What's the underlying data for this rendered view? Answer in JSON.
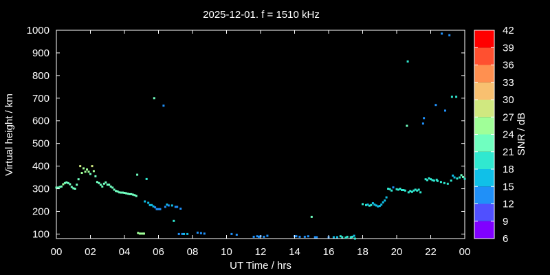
{
  "chart_data": {
    "type": "scatter",
    "title": "2025-12-01. f = 1510 kHz",
    "xlabel": "UT Time / hrs",
    "ylabel": "Virtual height / km",
    "xlim": [
      0,
      24
    ],
    "ylim": [
      80,
      1000
    ],
    "x_ticks": [
      "00",
      "02",
      "04",
      "06",
      "08",
      "10",
      "12",
      "14",
      "16",
      "18",
      "20",
      "22",
      "00"
    ],
    "y_ticks": [
      100,
      200,
      300,
      400,
      500,
      600,
      700,
      800,
      900,
      1000
    ],
    "grid": false,
    "colorbar": {
      "label": "SNR / dB",
      "range": [
        6,
        42
      ],
      "ticks": [
        6,
        9,
        12,
        15,
        18,
        21,
        24,
        27,
        30,
        33,
        36,
        39,
        42
      ],
      "colors": [
        "#8000ff",
        "#5050ff",
        "#2090f8",
        "#10c0e8",
        "#30e8d0",
        "#70ffc0",
        "#a0ff98",
        "#d0e880",
        "#f8c070",
        "#ff9050",
        "#ff5030",
        "#ff0000"
      ]
    },
    "points": [
      [
        0.0,
        305,
        22
      ],
      [
        0.1,
        305,
        22
      ],
      [
        0.2,
        308,
        22
      ],
      [
        0.3,
        310,
        23
      ],
      [
        0.4,
        320,
        24
      ],
      [
        0.5,
        325,
        23
      ],
      [
        0.6,
        328,
        22
      ],
      [
        0.7,
        325,
        22
      ],
      [
        0.8,
        320,
        23
      ],
      [
        0.9,
        308,
        23
      ],
      [
        1.0,
        302,
        22
      ],
      [
        1.1,
        300,
        22
      ],
      [
        1.2,
        318,
        23
      ],
      [
        1.3,
        342,
        23
      ],
      [
        1.4,
        400,
        28
      ],
      [
        1.5,
        370,
        25
      ],
      [
        1.6,
        390,
        26
      ],
      [
        1.7,
        375,
        24
      ],
      [
        1.8,
        385,
        25
      ],
      [
        1.9,
        375,
        24
      ],
      [
        2.0,
        365,
        23
      ],
      [
        2.1,
        400,
        28
      ],
      [
        2.2,
        378,
        25
      ],
      [
        2.3,
        355,
        22
      ],
      [
        2.4,
        330,
        22
      ],
      [
        2.5,
        325,
        22
      ],
      [
        2.6,
        318,
        22
      ],
      [
        2.7,
        310,
        23
      ],
      [
        2.8,
        322,
        22
      ],
      [
        2.9,
        328,
        23
      ],
      [
        3.0,
        318,
        22
      ],
      [
        3.1,
        318,
        22
      ],
      [
        3.2,
        310,
        22
      ],
      [
        3.3,
        305,
        22
      ],
      [
        3.4,
        296,
        22
      ],
      [
        3.5,
        290,
        22
      ],
      [
        3.6,
        288,
        22
      ],
      [
        3.7,
        284,
        22
      ],
      [
        3.8,
        283,
        22
      ],
      [
        3.9,
        283,
        22
      ],
      [
        4.0,
        282,
        22
      ],
      [
        4.1,
        280,
        22
      ],
      [
        4.2,
        278,
        22
      ],
      [
        4.3,
        276,
        22
      ],
      [
        4.4,
        276,
        22
      ],
      [
        4.5,
        274,
        22
      ],
      [
        4.6,
        272,
        22
      ],
      [
        4.7,
        268,
        22
      ],
      [
        4.75,
        362,
        21
      ],
      [
        4.8,
        105,
        24
      ],
      [
        4.9,
        102,
        24
      ],
      [
        5.0,
        102,
        26
      ],
      [
        5.1,
        102,
        26
      ],
      [
        5.15,
        102,
        26
      ],
      [
        5.2,
        244,
        17
      ],
      [
        5.3,
        343,
        18
      ],
      [
        5.4,
        238,
        16
      ],
      [
        5.5,
        228,
        16
      ],
      [
        5.6,
        228,
        15
      ],
      [
        5.7,
        222,
        15
      ],
      [
        5.75,
        700,
        22
      ],
      [
        5.8,
        218,
        14
      ],
      [
        5.9,
        210,
        14
      ],
      [
        6.0,
        210,
        14
      ],
      [
        6.1,
        210,
        14
      ],
      [
        6.3,
        667,
        14
      ],
      [
        6.4,
        220,
        14
      ],
      [
        6.5,
        230,
        15
      ],
      [
        6.6,
        226,
        14
      ],
      [
        6.8,
        226,
        15
      ],
      [
        6.9,
        158,
        18
      ],
      [
        7.0,
        220,
        12
      ],
      [
        7.1,
        220,
        12
      ],
      [
        7.2,
        100,
        13
      ],
      [
        7.3,
        212,
        12
      ],
      [
        7.4,
        100,
        14
      ],
      [
        7.5,
        100,
        15
      ],
      [
        7.7,
        100,
        15
      ],
      [
        8.3,
        106,
        13
      ],
      [
        8.5,
        104,
        13
      ],
      [
        8.7,
        102,
        13
      ],
      [
        10.3,
        100,
        13
      ],
      [
        10.6,
        97,
        13
      ],
      [
        11.6,
        88,
        13
      ],
      [
        11.8,
        90,
        14
      ],
      [
        11.9,
        88,
        14
      ],
      [
        12.0,
        90,
        14
      ],
      [
        12.2,
        88,
        14
      ],
      [
        12.4,
        92,
        14
      ],
      [
        14.0,
        90,
        13
      ],
      [
        14.1,
        90,
        13
      ],
      [
        14.3,
        88,
        13
      ],
      [
        14.6,
        88,
        13
      ],
      [
        14.8,
        90,
        13
      ],
      [
        15.0,
        176,
        23
      ],
      [
        15.2,
        86,
        14
      ],
      [
        15.3,
        86,
        14
      ],
      [
        16.0,
        86,
        14
      ],
      [
        16.3,
        86,
        16
      ],
      [
        16.5,
        86,
        16
      ],
      [
        16.7,
        90,
        18
      ],
      [
        16.8,
        86,
        18
      ],
      [
        17.0,
        84,
        18
      ],
      [
        17.1,
        88,
        18
      ],
      [
        17.3,
        86,
        18
      ],
      [
        17.4,
        88,
        18
      ],
      [
        17.5,
        92,
        17
      ],
      [
        17.55,
        80,
        18
      ],
      [
        18.0,
        232,
        18
      ],
      [
        18.2,
        228,
        18
      ],
      [
        18.3,
        230,
        17
      ],
      [
        18.4,
        225,
        18
      ],
      [
        18.5,
        228,
        18
      ],
      [
        18.6,
        236,
        17
      ],
      [
        18.7,
        230,
        17
      ],
      [
        18.8,
        226,
        17
      ],
      [
        18.9,
        222,
        17
      ],
      [
        19.0,
        224,
        17
      ],
      [
        19.1,
        230,
        17
      ],
      [
        19.2,
        240,
        17
      ],
      [
        19.3,
        248,
        17
      ],
      [
        19.4,
        262,
        17
      ],
      [
        19.5,
        300,
        18
      ],
      [
        19.6,
        298,
        18
      ],
      [
        19.7,
        292,
        18
      ],
      [
        19.8,
        306,
        12
      ],
      [
        20.0,
        298,
        19
      ],
      [
        20.1,
        296,
        19
      ],
      [
        20.2,
        300,
        20
      ],
      [
        20.3,
        294,
        19
      ],
      [
        20.4,
        294,
        19
      ],
      [
        20.5,
        292,
        19
      ],
      [
        20.6,
        578,
        22
      ],
      [
        20.65,
        862,
        19
      ],
      [
        20.7,
        284,
        20
      ],
      [
        20.8,
        290,
        20
      ],
      [
        20.9,
        286,
        20
      ],
      [
        21.0,
        292,
        18
      ],
      [
        21.1,
        296,
        18
      ],
      [
        21.2,
        292,
        18
      ],
      [
        21.3,
        296,
        18
      ],
      [
        21.4,
        284,
        18
      ],
      [
        21.55,
        588,
        12
      ],
      [
        21.6,
        612,
        12
      ],
      [
        21.7,
        342,
        19
      ],
      [
        21.8,
        338,
        20
      ],
      [
        21.9,
        346,
        20
      ],
      [
        22.0,
        342,
        19
      ],
      [
        22.1,
        338,
        20
      ],
      [
        22.2,
        336,
        19
      ],
      [
        22.3,
        670,
        12
      ],
      [
        22.35,
        340,
        19
      ],
      [
        22.4,
        334,
        20
      ],
      [
        22.6,
        330,
        20
      ],
      [
        22.65,
        985,
        12
      ],
      [
        22.8,
        325,
        19
      ],
      [
        22.85,
        645,
        12
      ],
      [
        23.0,
        322,
        20
      ],
      [
        23.1,
        978,
        12
      ],
      [
        23.2,
        336,
        20
      ],
      [
        23.25,
        706,
        20
      ],
      [
        23.3,
        358,
        16
      ],
      [
        23.4,
        350,
        17
      ],
      [
        23.5,
        706,
        20
      ],
      [
        23.55,
        345,
        19
      ],
      [
        23.7,
        350,
        20
      ],
      [
        23.8,
        360,
        22
      ],
      [
        23.9,
        352,
        22
      ],
      [
        24.0,
        344,
        20
      ]
    ]
  }
}
